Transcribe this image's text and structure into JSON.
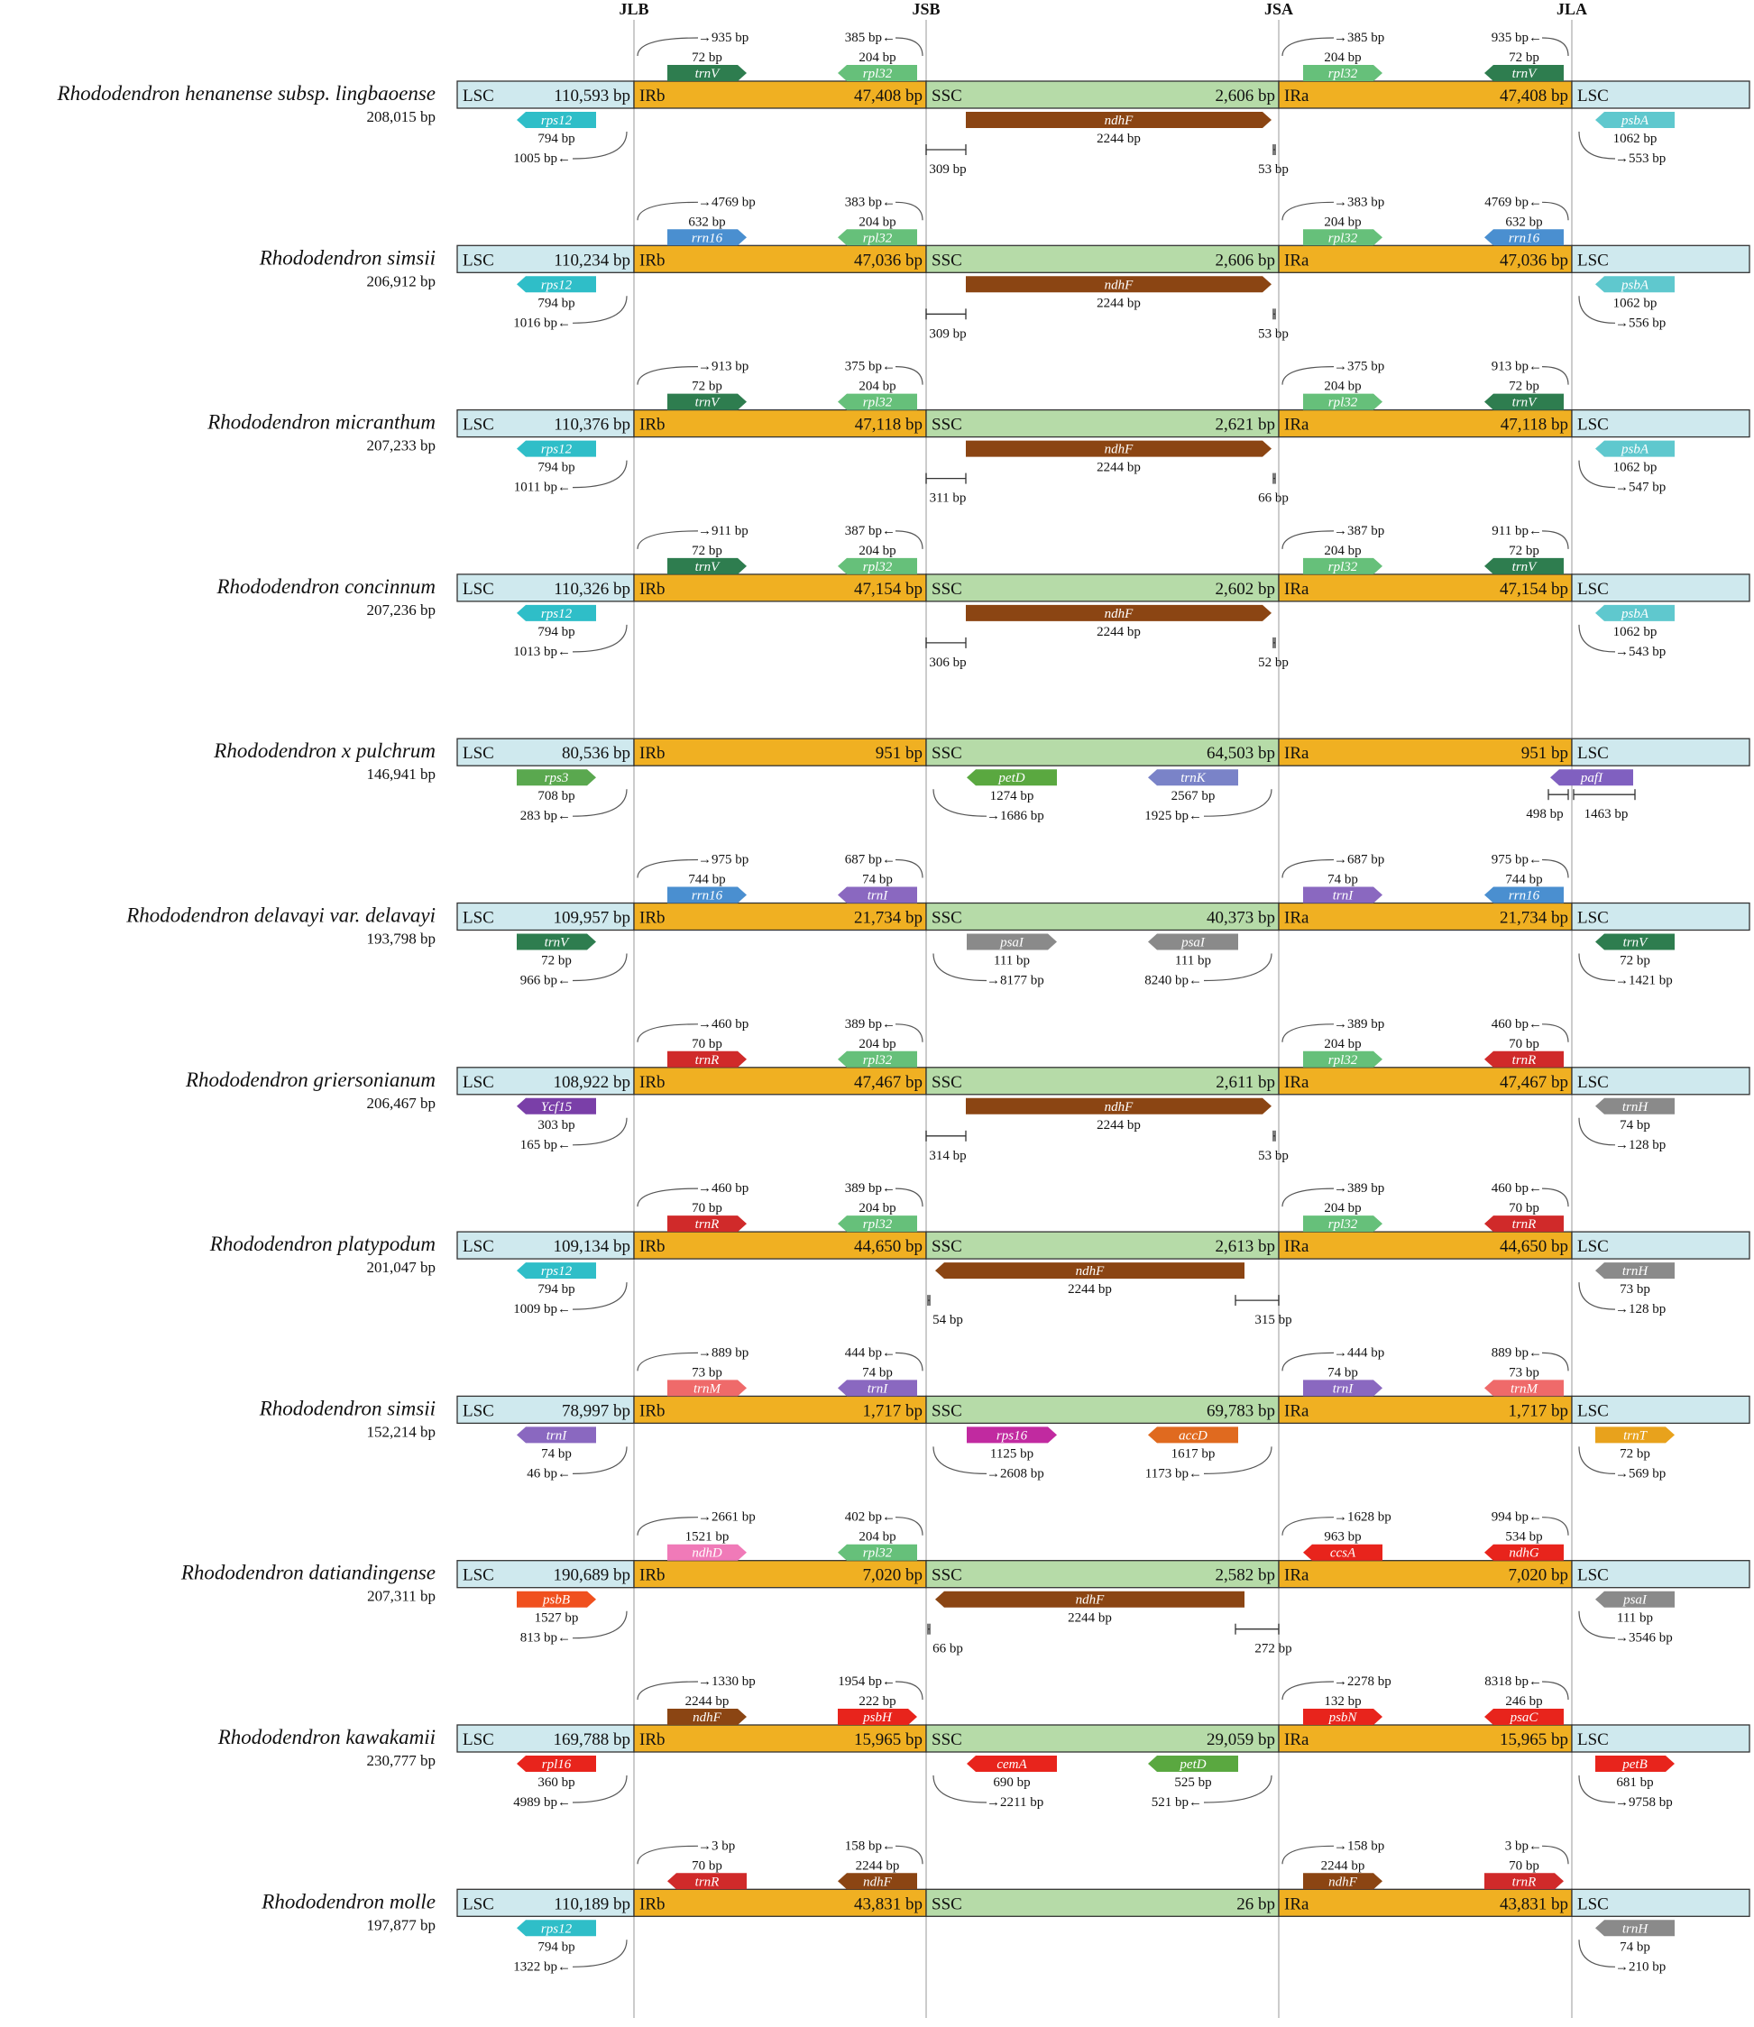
{
  "junctions": [
    "JLB",
    "JSB",
    "JSA",
    "JLA"
  ],
  "colors": {
    "LSC": "#cfe9ee",
    "IR": "#f0b022",
    "SSC": "#b6dba8",
    "outline": "#333333",
    "vline": "#bbbbbb",
    "trnV": "#2e7d4f",
    "rpl32": "#66c07a",
    "ndhF": "#8b4513",
    "rps12": "#2fbec8",
    "psbA": "#5fc8ce",
    "rrn16": "#4a8fd0",
    "rps3": "#5aa84f",
    "petD": "#5aa840",
    "trnK": "#7a83c8",
    "pafI": "#8060c0",
    "trnI": "#8a68c0",
    "psaI": "#8a8a8a",
    "trnR": "#d02a2a",
    "Ycf15": "#7a3fa8",
    "trnH": "#8a8a8a",
    "trnM": "#ef6a6a",
    "rps16": "#c12aa0",
    "accD": "#e06a1f",
    "trnT": "#e8a21c",
    "ndhD": "#f07ab8",
    "ccsA": "#e8241c",
    "ndhG": "#e8241c",
    "psbB": "#f0501e",
    "psbH": "#e8241c",
    "rpl16": "#e8241c",
    "cemA": "#e8241c",
    "psbN": "#e8241c",
    "psaC": "#e8241c",
    "petB": "#e8241c"
  },
  "species": [
    {
      "name": "Rhododendron henanense subsp. lingbaoense",
      "total": "208,015 bp",
      "segments": [
        {
          "label": "LSC",
          "value": "110,593 bp"
        },
        {
          "label": "IRb",
          "value": "47,408 bp"
        },
        {
          "label": "SSC",
          "value": "2,606 bp"
        },
        {
          "label": "IRa",
          "value": "47,408 bp"
        },
        {
          "label": "LSC",
          "value": ""
        }
      ],
      "genes_above": [
        {
          "name": "trnV",
          "len": "72 bp",
          "dist": "935 bp",
          "j": 0,
          "dir": "R"
        },
        {
          "name": "rpl32",
          "len": "204 bp",
          "dist": "385 bp",
          "j": 1,
          "dir": "L"
        },
        {
          "name": "rpl32",
          "len": "204 bp",
          "dist": "385 bp",
          "j": 2,
          "dir": "R"
        },
        {
          "name": "trnV",
          "len": "72 bp",
          "dist": "935 bp",
          "j": 3,
          "dir": "L"
        }
      ],
      "genes_below": [
        {
          "name": "rps12",
          "len": "794 bp",
          "dist": "1005 bp",
          "j": 0,
          "dir": "L"
        },
        {
          "name": "psbA",
          "len": "1062 bp",
          "dist": "553 bp",
          "j": 3,
          "dir": "L"
        }
      ],
      "ssc_gene": {
        "name": "ndhF",
        "len": "2244 bp",
        "left": "309 bp",
        "right": "53 bp",
        "shift": "L"
      }
    },
    {
      "name": "Rhododendron simsii",
      "total": "206,912 bp",
      "segments": [
        {
          "label": "LSC",
          "value": "110,234 bp"
        },
        {
          "label": "IRb",
          "value": "47,036 bp"
        },
        {
          "label": "SSC",
          "value": "2,606 bp"
        },
        {
          "label": "IRa",
          "value": "47,036 bp"
        },
        {
          "label": "LSC",
          "value": ""
        }
      ],
      "genes_above": [
        {
          "name": "rrn16",
          "len": "632 bp",
          "dist": "4769 bp",
          "j": 0,
          "dir": "R"
        },
        {
          "name": "rpl32",
          "len": "204 bp",
          "dist": "383 bp",
          "j": 1,
          "dir": "L"
        },
        {
          "name": "rpl32",
          "len": "204 bp",
          "dist": "383 bp",
          "j": 2,
          "dir": "R"
        },
        {
          "name": "rrn16",
          "len": "632 bp",
          "dist": "4769 bp",
          "j": 3,
          "dir": "L"
        }
      ],
      "genes_below": [
        {
          "name": "rps12",
          "len": "794 bp",
          "dist": "1016 bp",
          "j": 0,
          "dir": "L"
        },
        {
          "name": "psbA",
          "len": "1062 bp",
          "dist": "556 bp",
          "j": 3,
          "dir": "L"
        }
      ],
      "ssc_gene": {
        "name": "ndhF",
        "len": "2244 bp",
        "left": "309 bp",
        "right": "53 bp",
        "shift": "L"
      }
    },
    {
      "name": "Rhododendron micranthum",
      "total": "207,233 bp",
      "segments": [
        {
          "label": "LSC",
          "value": "110,376 bp"
        },
        {
          "label": "IRb",
          "value": "47,118 bp"
        },
        {
          "label": "SSC",
          "value": "2,621 bp"
        },
        {
          "label": "IRa",
          "value": "47,118 bp"
        },
        {
          "label": "LSC",
          "value": ""
        }
      ],
      "genes_above": [
        {
          "name": "trnV",
          "len": "72 bp",
          "dist": "913 bp",
          "j": 0,
          "dir": "R"
        },
        {
          "name": "rpl32",
          "len": "204 bp",
          "dist": "375 bp",
          "j": 1,
          "dir": "L"
        },
        {
          "name": "rpl32",
          "len": "204 bp",
          "dist": "375 bp",
          "j": 2,
          "dir": "R"
        },
        {
          "name": "trnV",
          "len": "72 bp",
          "dist": "913 bp",
          "j": 3,
          "dir": "L"
        }
      ],
      "genes_below": [
        {
          "name": "rps12",
          "len": "794 bp",
          "dist": "1011 bp",
          "j": 0,
          "dir": "L"
        },
        {
          "name": "psbA",
          "len": "1062 bp",
          "dist": "547 bp",
          "j": 3,
          "dir": "L"
        }
      ],
      "ssc_gene": {
        "name": "ndhF",
        "len": "2244 bp",
        "left": "311 bp",
        "right": "66 bp",
        "shift": "L"
      }
    },
    {
      "name": "Rhododendron concinnum",
      "total": "207,236 bp",
      "segments": [
        {
          "label": "LSC",
          "value": "110,326 bp"
        },
        {
          "label": "IRb",
          "value": "47,154 bp"
        },
        {
          "label": "SSC",
          "value": "2,602 bp"
        },
        {
          "label": "IRa",
          "value": "47,154 bp"
        },
        {
          "label": "LSC",
          "value": ""
        }
      ],
      "genes_above": [
        {
          "name": "trnV",
          "len": "72 bp",
          "dist": "911 bp",
          "j": 0,
          "dir": "R"
        },
        {
          "name": "rpl32",
          "len": "204 bp",
          "dist": "387 bp",
          "j": 1,
          "dir": "L"
        },
        {
          "name": "rpl32",
          "len": "204 bp",
          "dist": "387 bp",
          "j": 2,
          "dir": "R"
        },
        {
          "name": "trnV",
          "len": "72 bp",
          "dist": "911 bp",
          "j": 3,
          "dir": "L"
        }
      ],
      "genes_below": [
        {
          "name": "rps12",
          "len": "794 bp",
          "dist": "1013 bp",
          "j": 0,
          "dir": "L"
        },
        {
          "name": "psbA",
          "len": "1062 bp",
          "dist": "543 bp",
          "j": 3,
          "dir": "L"
        }
      ],
      "ssc_gene": {
        "name": "ndhF",
        "len": "2244 bp",
        "left": "306 bp",
        "right": "52 bp",
        "shift": "L"
      }
    },
    {
      "name": "Rhododendron x pulchrum",
      "total": "146,941 bp",
      "segments": [
        {
          "label": "LSC",
          "value": "80,536 bp"
        },
        {
          "label": "IRb",
          "value": "951 bp"
        },
        {
          "label": "SSC",
          "value": "64,503 bp"
        },
        {
          "label": "IRa",
          "value": "951 bp"
        },
        {
          "label": "LSC",
          "value": ""
        }
      ],
      "genes_above": [],
      "genes_below": [
        {
          "name": "rps3",
          "len": "708 bp",
          "dist": "283 bp",
          "j": 0,
          "dir": "R"
        },
        {
          "name": "petD",
          "len": "1274 bp",
          "dist": "1686 bp",
          "j": 1,
          "dir": "L"
        },
        {
          "name": "trnK",
          "len": "2567 bp",
          "dist": "1925 bp",
          "j": 2,
          "dir": "L"
        }
      ],
      "special_jla": {
        "name": "pafI",
        "a": "498 bp",
        "b": "1463 bp"
      }
    },
    {
      "name": "Rhododendron delavayi var. delavayi",
      "total": "193,798 bp",
      "segments": [
        {
          "label": "LSC",
          "value": "109,957 bp"
        },
        {
          "label": "IRb",
          "value": "21,734 bp"
        },
        {
          "label": "SSC",
          "value": "40,373 bp"
        },
        {
          "label": "IRa",
          "value": "21,734 bp"
        },
        {
          "label": "LSC",
          "value": ""
        }
      ],
      "genes_above": [
        {
          "name": "rrn16",
          "len": "744 bp",
          "dist": "975 bp",
          "j": 0,
          "dir": "R"
        },
        {
          "name": "trnI",
          "len": "74 bp",
          "dist": "687 bp",
          "j": 1,
          "dir": "L"
        },
        {
          "name": "trnI",
          "len": "74 bp",
          "dist": "687 bp",
          "j": 2,
          "dir": "R"
        },
        {
          "name": "rrn16",
          "len": "744 bp",
          "dist": "975 bp",
          "j": 3,
          "dir": "L"
        }
      ],
      "genes_below": [
        {
          "name": "trnV",
          "len": "72 bp",
          "dist": "966 bp",
          "j": 0,
          "dir": "R"
        },
        {
          "name": "psaI",
          "len": "111 bp",
          "dist": "8177 bp",
          "j": 1,
          "dir": "R"
        },
        {
          "name": "psaI",
          "len": "111 bp",
          "dist": "8240 bp",
          "j": 2,
          "dir": "L"
        },
        {
          "name": "trnV",
          "len": "72 bp",
          "dist": "1421 bp",
          "j": 3,
          "dir": "L"
        }
      ]
    },
    {
      "name": "Rhododendron griersonianum",
      "total": "206,467 bp",
      "segments": [
        {
          "label": "LSC",
          "value": "108,922 bp"
        },
        {
          "label": "IRb",
          "value": "47,467 bp"
        },
        {
          "label": "SSC",
          "value": "2,611 bp"
        },
        {
          "label": "IRa",
          "value": "47,467 bp"
        },
        {
          "label": "LSC",
          "value": ""
        }
      ],
      "genes_above": [
        {
          "name": "trnR",
          "len": "70 bp",
          "dist": "460 bp",
          "j": 0,
          "dir": "R"
        },
        {
          "name": "rpl32",
          "len": "204 bp",
          "dist": "389 bp",
          "j": 1,
          "dir": "L"
        },
        {
          "name": "rpl32",
          "len": "204 bp",
          "dist": "389 bp",
          "j": 2,
          "dir": "R"
        },
        {
          "name": "trnR",
          "len": "70 bp",
          "dist": "460 bp",
          "j": 3,
          "dir": "L"
        }
      ],
      "genes_below": [
        {
          "name": "Ycf15",
          "len": "303 bp",
          "dist": "165 bp",
          "j": 0,
          "dir": "L"
        },
        {
          "name": "trnH",
          "len": "74 bp",
          "dist": "128 bp",
          "j": 3,
          "dir": "L"
        }
      ],
      "ssc_gene": {
        "name": "ndhF",
        "len": "2244 bp",
        "left": "314 bp",
        "right": "53 bp",
        "shift": "L"
      }
    },
    {
      "name": "Rhododendron platypodum",
      "total": "201,047 bp",
      "segments": [
        {
          "label": "LSC",
          "value": "109,134 bp"
        },
        {
          "label": "IRb",
          "value": "44,650 bp"
        },
        {
          "label": "SSC",
          "value": "2,613 bp"
        },
        {
          "label": "IRa",
          "value": "44,650 bp"
        },
        {
          "label": "LSC",
          "value": ""
        }
      ],
      "genes_above": [
        {
          "name": "trnR",
          "len": "70 bp",
          "dist": "460 bp",
          "j": 0,
          "dir": "R"
        },
        {
          "name": "rpl32",
          "len": "204 bp",
          "dist": "389 bp",
          "j": 1,
          "dir": "L"
        },
        {
          "name": "rpl32",
          "len": "204 bp",
          "dist": "389 bp",
          "j": 2,
          "dir": "R"
        },
        {
          "name": "trnR",
          "len": "70 bp",
          "dist": "460 bp",
          "j": 3,
          "dir": "L"
        }
      ],
      "genes_below": [
        {
          "name": "rps12",
          "len": "794 bp",
          "dist": "1009 bp",
          "j": 0,
          "dir": "L"
        },
        {
          "name": "trnH",
          "len": "73 bp",
          "dist": "128 bp",
          "j": 3,
          "dir": "L"
        }
      ],
      "ssc_gene": {
        "name": "ndhF",
        "len": "2244 bp",
        "left": "54 bp",
        "right": "315 bp",
        "shift": "R"
      }
    },
    {
      "name": "Rhododendron simsii",
      "total": "152,214 bp",
      "segments": [
        {
          "label": "LSC",
          "value": "78,997 bp"
        },
        {
          "label": "IRb",
          "value": "1,717 bp"
        },
        {
          "label": "SSC",
          "value": "69,783 bp"
        },
        {
          "label": "IRa",
          "value": "1,717 bp"
        },
        {
          "label": "LSC",
          "value": ""
        }
      ],
      "genes_above": [
        {
          "name": "trnM",
          "len": "73 bp",
          "dist": "889 bp",
          "j": 0,
          "dir": "R"
        },
        {
          "name": "trnI",
          "len": "74 bp",
          "dist": "444 bp",
          "j": 1,
          "dir": "L"
        },
        {
          "name": "trnI",
          "len": "74 bp",
          "dist": "444 bp",
          "j": 2,
          "dir": "R"
        },
        {
          "name": "trnM",
          "len": "73 bp",
          "dist": "889 bp",
          "j": 3,
          "dir": "L"
        }
      ],
      "genes_below": [
        {
          "name": "trnI",
          "len": "74 bp",
          "dist": "46 bp",
          "j": 0,
          "dir": "L"
        },
        {
          "name": "rps16",
          "len": "1125 bp",
          "dist": "2608 bp",
          "j": 1,
          "dir": "R"
        },
        {
          "name": "accD",
          "len": "1617 bp",
          "dist": "1173 bp",
          "j": 2,
          "dir": "L"
        },
        {
          "name": "trnT",
          "len": "72 bp",
          "dist": "569 bp",
          "j": 3,
          "dir": "R"
        }
      ]
    },
    {
      "name": "Rhododendron datiandingense",
      "total": "207,311 bp",
      "segments": [
        {
          "label": "LSC",
          "value": "190,689 bp"
        },
        {
          "label": "IRb",
          "value": "7,020 bp"
        },
        {
          "label": "SSC",
          "value": "2,582 bp"
        },
        {
          "label": "IRa",
          "value": "7,020 bp"
        },
        {
          "label": "LSC",
          "value": ""
        }
      ],
      "genes_above": [
        {
          "name": "ndhD",
          "len": "1521 bp",
          "dist": "2661 bp",
          "j": 0,
          "dir": "R"
        },
        {
          "name": "rpl32",
          "len": "204 bp",
          "dist": "402 bp",
          "j": 1,
          "dir": "L"
        },
        {
          "name": "ccsA",
          "len": "963 bp",
          "dist": "1628 bp",
          "j": 2,
          "dir": "L"
        },
        {
          "name": "ndhG",
          "len": "534 bp",
          "dist": "994 bp",
          "j": 3,
          "dir": "L"
        }
      ],
      "genes_below": [
        {
          "name": "psbB",
          "len": "1527 bp",
          "dist": "813 bp",
          "j": 0,
          "dir": "R"
        },
        {
          "name": "psaI",
          "len": "111 bp",
          "dist": "3546 bp",
          "j": 3,
          "dir": "L"
        }
      ],
      "ssc_gene": {
        "name": "ndhF",
        "len": "2244 bp",
        "left": "66 bp",
        "right": "272 bp",
        "shift": "R"
      }
    },
    {
      "name": "Rhododendron kawakamii",
      "total": "230,777 bp",
      "segments": [
        {
          "label": "LSC",
          "value": "169,788 bp"
        },
        {
          "label": "IRb",
          "value": "15,965 bp"
        },
        {
          "label": "SSC",
          "value": "29,059 bp"
        },
        {
          "label": "IRa",
          "value": "15,965 bp"
        },
        {
          "label": "LSC",
          "value": ""
        }
      ],
      "genes_above": [
        {
          "name": "ndhF",
          "len": "2244 bp",
          "dist": "1330 bp",
          "j": 0,
          "dir": "R"
        },
        {
          "name": "psbH",
          "len": "222 bp",
          "dist": "1954 bp",
          "j": 1,
          "dir": "R"
        },
        {
          "name": "psbN",
          "len": "132 bp",
          "dist": "2278 bp",
          "j": 2,
          "dir": "R"
        },
        {
          "name": "psaC",
          "len": "246 bp",
          "dist": "8318 bp",
          "j": 3,
          "dir": "L"
        }
      ],
      "genes_below": [
        {
          "name": "rpl16",
          "len": "360 bp",
          "dist": "4989 bp",
          "j": 0,
          "dir": "L"
        },
        {
          "name": "cemA",
          "len": "690 bp",
          "dist": "2211 bp",
          "j": 1,
          "dir": "L"
        },
        {
          "name": "petD",
          "len": "525 bp",
          "dist": "521 bp",
          "j": 2,
          "dir": "L"
        },
        {
          "name": "petB",
          "len": "681 bp",
          "dist": "9758 bp",
          "j": 3,
          "dir": "R"
        }
      ]
    },
    {
      "name": "Rhododendron molle",
      "total": "197,877 bp",
      "segments": [
        {
          "label": "LSC",
          "value": "110,189 bp"
        },
        {
          "label": "IRb",
          "value": "43,831 bp"
        },
        {
          "label": "SSC",
          "value": "26 bp"
        },
        {
          "label": "IRa",
          "value": "43,831 bp"
        },
        {
          "label": "LSC",
          "value": ""
        }
      ],
      "genes_above": [
        {
          "name": "trnR",
          "len": "70 bp",
          "dist": "3 bp",
          "j": 0,
          "dir": "L"
        },
        {
          "name": "ndhF",
          "len": "2244 bp",
          "dist": "158 bp",
          "j": 1,
          "dir": "L"
        },
        {
          "name": "ndhF",
          "len": "2244 bp",
          "dist": "158 bp",
          "j": 2,
          "dir": "R"
        },
        {
          "name": "trnR",
          "len": "70 bp",
          "dist": "3 bp",
          "j": 3,
          "dir": "R"
        }
      ],
      "genes_below": [
        {
          "name": "rps12",
          "len": "794 bp",
          "dist": "1322 bp",
          "j": 0,
          "dir": "L"
        },
        {
          "name": "trnH",
          "len": "74 bp",
          "dist": "210 bp",
          "j": 3,
          "dir": "L"
        }
      ]
    }
  ]
}
